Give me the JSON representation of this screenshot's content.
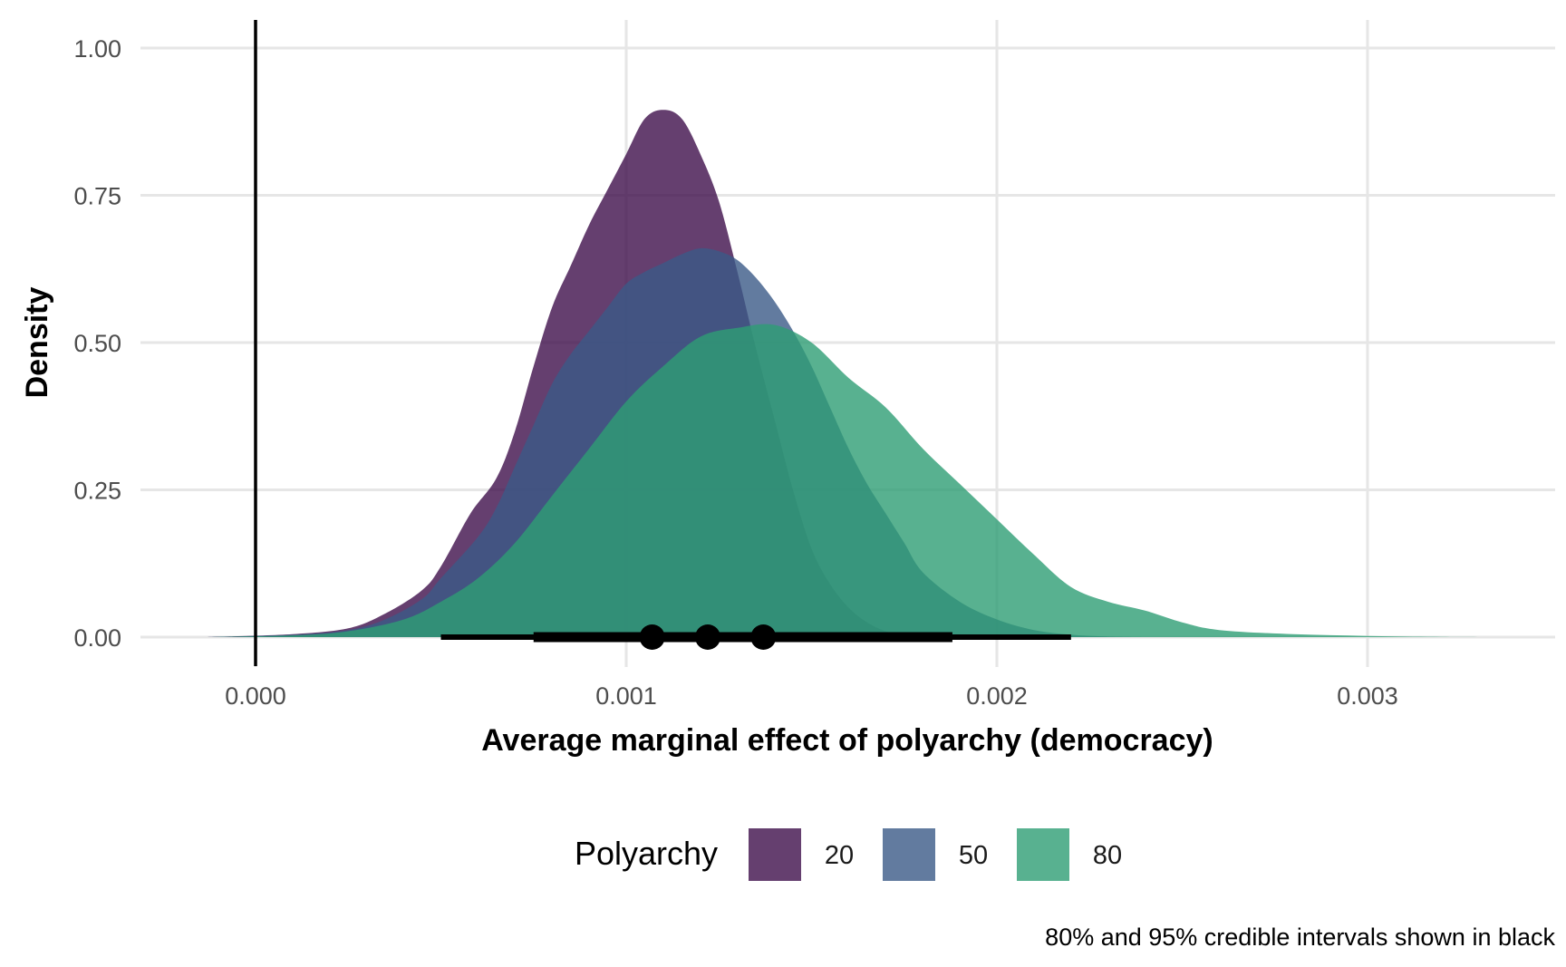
{
  "chart_data": {
    "type": "area",
    "subtype": "density",
    "xlabel": "Average marginal effect of polyarchy (democracy)",
    "ylabel": "Density",
    "xlim": [
      -0.00015,
      0.0035
    ],
    "ylim": [
      0,
      1.0
    ],
    "x_ticks": [
      0.0,
      0.001,
      0.002,
      0.003
    ],
    "x_tick_labels": [
      "0.000",
      "0.001",
      "0.002",
      "0.003"
    ],
    "y_ticks": [
      0.0,
      0.25,
      0.5,
      0.75,
      1.0
    ],
    "y_tick_labels": [
      "0.00",
      "0.25",
      "0.50",
      "0.75",
      "1.00"
    ],
    "grid": true,
    "vline_x": 0.0,
    "legend": {
      "title": "Polyarchy",
      "position": "bottom",
      "entries": [
        "20",
        "50",
        "80"
      ]
    },
    "caption": "80% and 95% credible intervals shown in black",
    "series": [
      {
        "name": "20",
        "color": "#3f0f4b",
        "opacity": 0.8,
        "x": [
          -0.00013,
          0.0001,
          0.00025,
          0.00035,
          0.00045,
          0.0005,
          0.00058,
          0.00065,
          0.0007,
          0.00075,
          0.0008,
          0.00085,
          0.0009,
          0.00095,
          0.001,
          0.00105,
          0.0011,
          0.00115,
          0.0012,
          0.00125,
          0.0013,
          0.00135,
          0.0014,
          0.00145,
          0.0015,
          0.00155,
          0.0016,
          0.00165,
          0.0017,
          0.00175,
          0.0018,
          0.0019
        ],
        "y": [
          0.0,
          0.005,
          0.015,
          0.04,
          0.08,
          0.12,
          0.21,
          0.27,
          0.35,
          0.46,
          0.56,
          0.63,
          0.7,
          0.76,
          0.82,
          0.88,
          0.895,
          0.88,
          0.82,
          0.74,
          0.62,
          0.49,
          0.37,
          0.25,
          0.15,
          0.09,
          0.05,
          0.025,
          0.01,
          0.004,
          0.001,
          0.0
        ]
      },
      {
        "name": "50",
        "color": "#3b5a87",
        "opacity": 0.8,
        "x": [
          -0.00013,
          0.0001,
          0.00025,
          0.00035,
          0.00045,
          0.0005,
          0.0006,
          0.00065,
          0.0007,
          0.00075,
          0.0008,
          0.00085,
          0.0009,
          0.00095,
          0.001,
          0.00105,
          0.0011,
          0.00115,
          0.0012,
          0.00125,
          0.0013,
          0.00135,
          0.0014,
          0.00145,
          0.0015,
          0.00155,
          0.0016,
          0.00165,
          0.0017,
          0.00175,
          0.0018,
          0.0019,
          0.002,
          0.0021,
          0.0022,
          0.0023,
          0.0024
        ],
        "y": [
          0.0,
          0.004,
          0.012,
          0.03,
          0.065,
          0.1,
          0.17,
          0.22,
          0.29,
          0.36,
          0.43,
          0.48,
          0.52,
          0.56,
          0.6,
          0.62,
          0.635,
          0.65,
          0.66,
          0.655,
          0.64,
          0.61,
          0.57,
          0.52,
          0.46,
          0.39,
          0.32,
          0.26,
          0.21,
          0.16,
          0.11,
          0.06,
          0.03,
          0.012,
          0.004,
          0.001,
          0.0
        ]
      },
      {
        "name": "80",
        "color": "#2e9e74",
        "opacity": 0.8,
        "x": [
          -0.00013,
          0.0001,
          0.00025,
          0.0004,
          0.0005,
          0.0006,
          0.0007,
          0.0008,
          0.0009,
          0.001,
          0.0011,
          0.0012,
          0.0013,
          0.0014,
          0.0015,
          0.0016,
          0.0017,
          0.0018,
          0.0019,
          0.002,
          0.0021,
          0.0022,
          0.0023,
          0.0024,
          0.0025,
          0.0026,
          0.0028,
          0.003,
          0.0032,
          0.00335
        ],
        "y": [
          0.0,
          0.003,
          0.01,
          0.03,
          0.06,
          0.1,
          0.16,
          0.24,
          0.32,
          0.4,
          0.46,
          0.51,
          0.525,
          0.53,
          0.5,
          0.44,
          0.39,
          0.32,
          0.26,
          0.2,
          0.14,
          0.085,
          0.06,
          0.045,
          0.025,
          0.012,
          0.005,
          0.002,
          0.0005,
          0.0
        ]
      }
    ],
    "intervals": [
      {
        "series": "20",
        "median": 0.00107,
        "ci80": [
          0.00075,
          0.0014
        ],
        "ci95": [
          0.0005,
          0.00168
        ]
      },
      {
        "series": "50",
        "median": 0.00122,
        "ci80": [
          0.0008,
          0.00164
        ],
        "ci95": [
          0.00075,
          0.00192
        ]
      },
      {
        "series": "80",
        "median": 0.00137,
        "ci80": [
          0.00088,
          0.00188
        ],
        "ci95": [
          0.00075,
          0.0022
        ]
      }
    ]
  }
}
